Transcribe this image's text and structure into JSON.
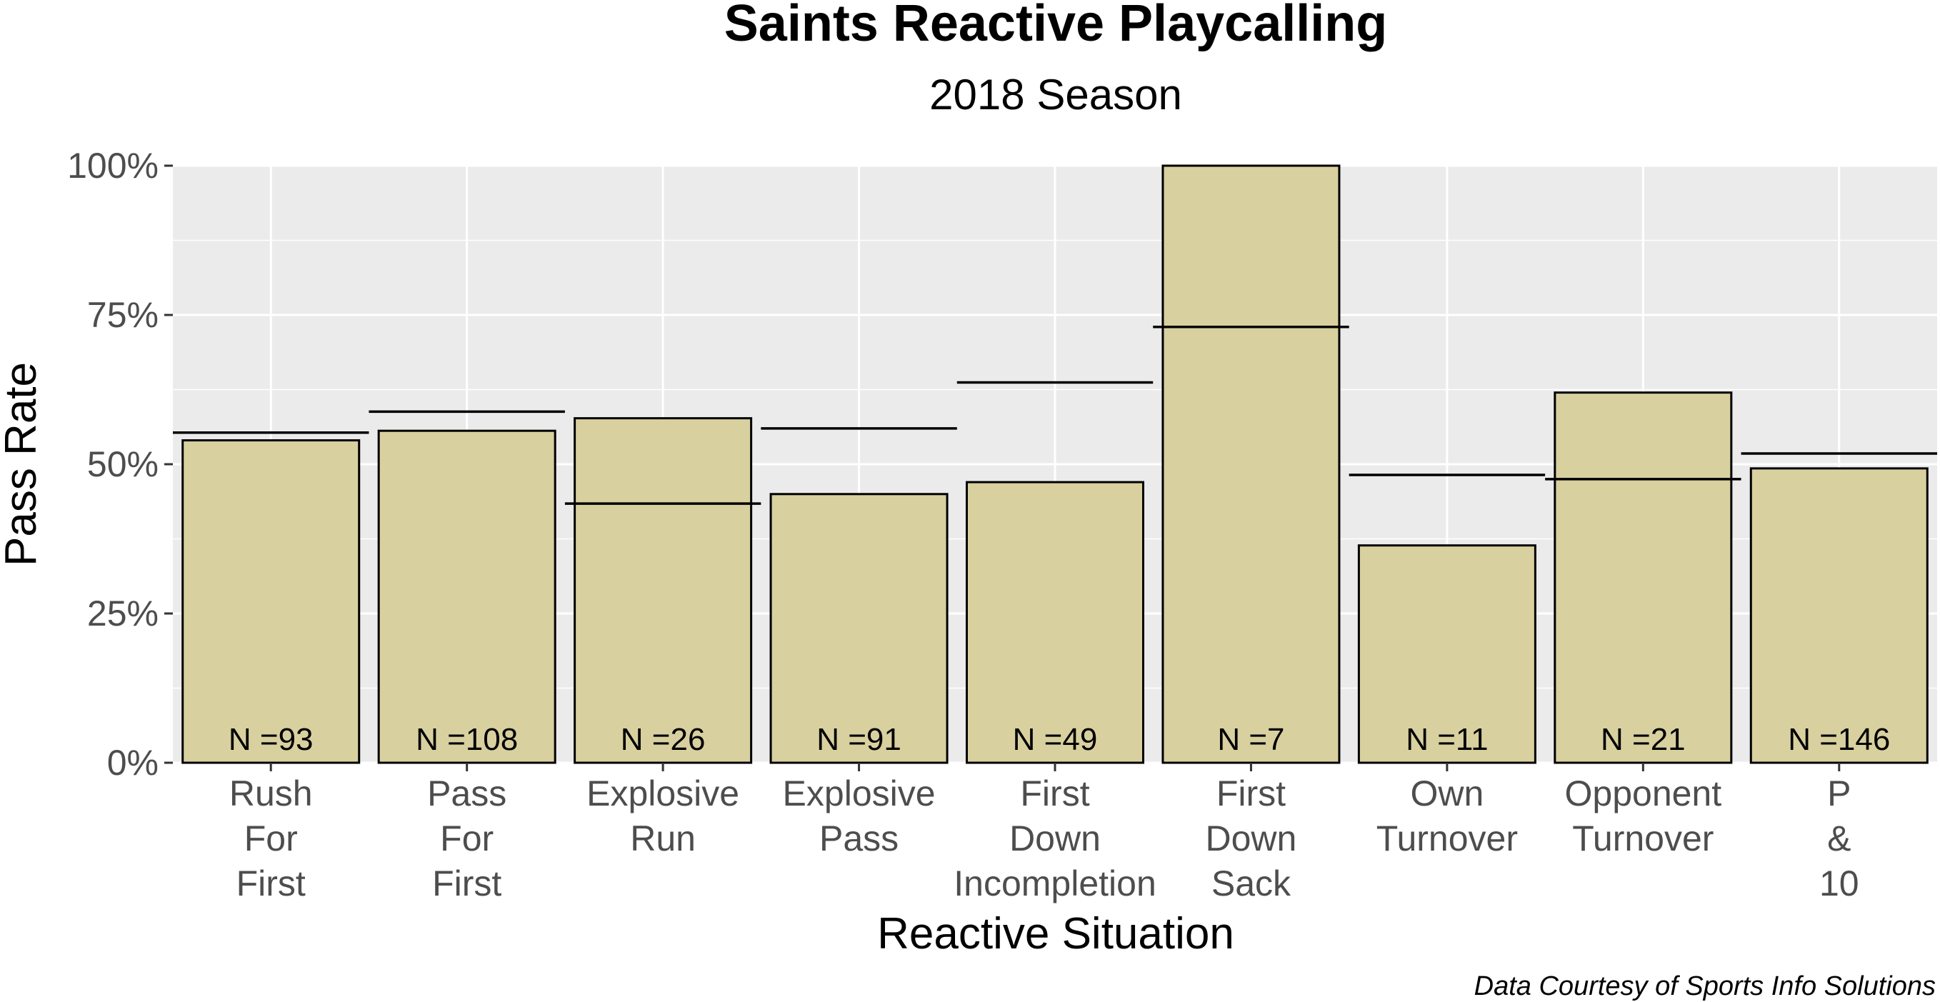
{
  "chart_data": {
    "type": "bar",
    "title": "Saints Reactive Playcalling",
    "subtitle": "2018 Season",
    "xlabel": "Reactive Situation",
    "ylabel": "Pass Rate",
    "caption": "Data Courtesy of Sports Info Solutions",
    "ylim": [
      0,
      1
    ],
    "y_ticks": [
      {
        "value": 0,
        "label": "0%"
      },
      {
        "value": 0.25,
        "label": "25%"
      },
      {
        "value": 0.5,
        "label": "50%"
      },
      {
        "value": 0.75,
        "label": "75%"
      },
      {
        "value": 1,
        "label": "100%"
      }
    ],
    "grid": true,
    "colors": {
      "bar_fill": "#d8d09f",
      "bar_stroke": "#000000",
      "panel_bg": "#ebebeb",
      "grid": "#ffffff",
      "reference_line": "#000000"
    },
    "categories": [
      {
        "label": [
          "Rush",
          "For",
          "First"
        ],
        "value": 0.54,
        "reference": 0.553,
        "n_label": "N =93"
      },
      {
        "label": [
          "Pass",
          "For",
          "First"
        ],
        "value": 0.556,
        "reference": 0.588,
        "n_label": "N =108"
      },
      {
        "label": [
          "Explosive",
          "Run"
        ],
        "value": 0.577,
        "reference": 0.434,
        "n_label": "N =26"
      },
      {
        "label": [
          "Explosive",
          "Pass"
        ],
        "value": 0.45,
        "reference": 0.56,
        "n_label": "N =91"
      },
      {
        "label": [
          "First",
          "Down",
          "Incompletion"
        ],
        "value": 0.47,
        "reference": 0.637,
        "n_label": "N =49"
      },
      {
        "label": [
          "First",
          "Down",
          "Sack"
        ],
        "value": 1.0,
        "reference": 0.73,
        "n_label": "N =7"
      },
      {
        "label": [
          "Own",
          "Turnover"
        ],
        "value": 0.364,
        "reference": 0.482,
        "n_label": "N =11"
      },
      {
        "label": [
          "Opponent",
          "Turnover"
        ],
        "value": 0.62,
        "reference": 0.475,
        "n_label": "N =21"
      },
      {
        "label": [
          "P",
          "&",
          "10"
        ],
        "value": 0.493,
        "reference": 0.518,
        "n_label": "N =146"
      }
    ]
  }
}
